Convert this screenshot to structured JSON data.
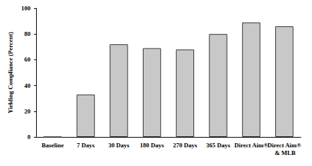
{
  "chart_data": {
    "type": "bar",
    "y_label": "Yielding Compliance (Percent)",
    "categories": [
      "Baseline",
      "7 Days",
      "30 Days",
      "180 Days",
      "270 Days",
      "365 Days",
      "Direct Aim®",
      "Direct Aim® & MLB"
    ],
    "values": [
      0,
      33,
      72,
      69,
      68,
      80,
      89,
      86
    ],
    "color": "#c8c8c8",
    "ylim": [
      0,
      100
    ],
    "yticks": [
      0,
      20,
      40,
      60,
      80,
      100
    ],
    "grid": false
  }
}
